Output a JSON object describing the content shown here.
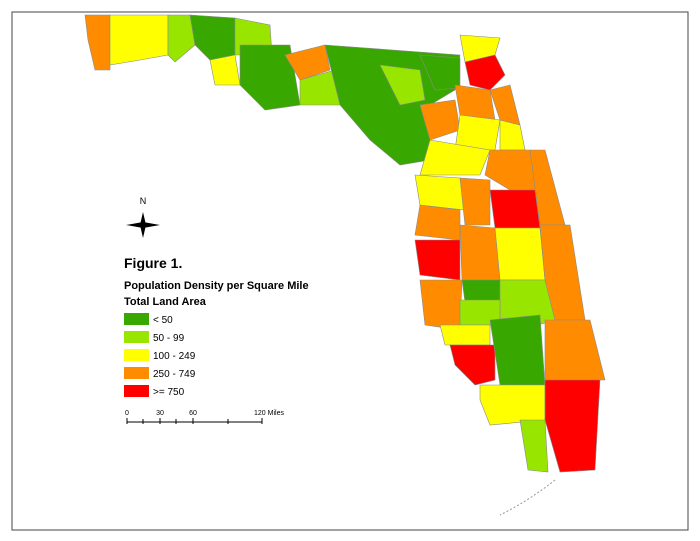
{
  "compass": "N",
  "figure_label": "Figure 1.",
  "legend": {
    "title": "Population Density per Square Mile",
    "subtitle": "Total Land Area",
    "items": [
      {
        "label": "< 50",
        "color": "#38a800"
      },
      {
        "label": "50 - 99",
        "color": "#98e600"
      },
      {
        "label": "100 - 249",
        "color": "#ffff00"
      },
      {
        "label": "250 - 749",
        "color": "#ff8c00"
      },
      {
        "label": ">= 750",
        "color": "#ff0000"
      }
    ]
  },
  "scale_bar": {
    "labels": [
      "0",
      "30",
      "60",
      "120 Miles"
    ]
  }
}
